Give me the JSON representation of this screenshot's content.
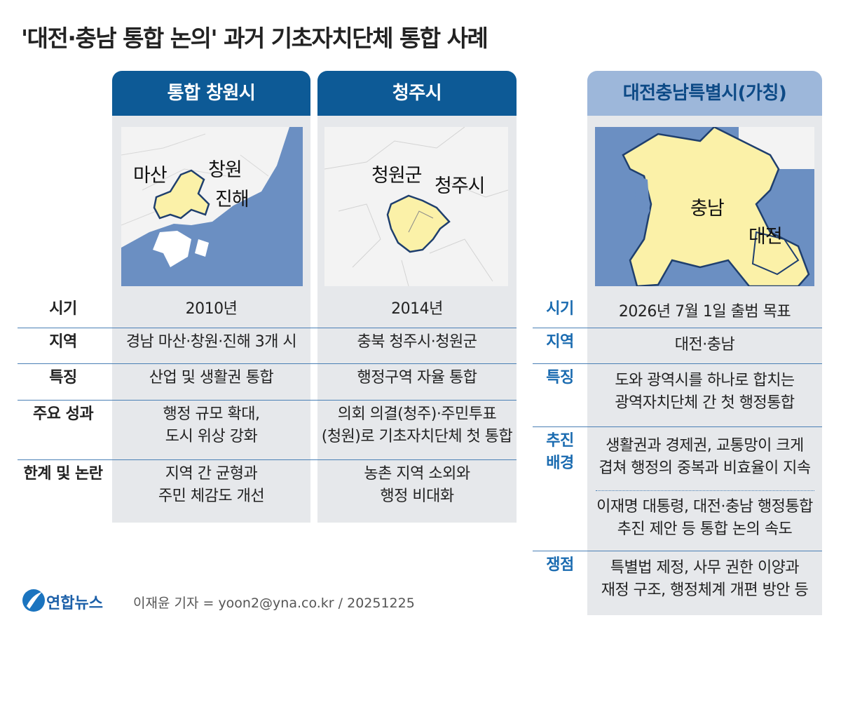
{
  "title": "'대전·충남 통합 논의' 과거 기초자치단체 통합 사례",
  "table": {
    "row_labels": [
      "시기",
      "지역",
      "특징",
      "주요 성과",
      "한계 및 논란"
    ],
    "columns": [
      {
        "header": "통합 창원시",
        "map_labels": [
          "마산",
          "창원",
          "진해"
        ],
        "cells": [
          [
            "2010년"
          ],
          [
            "경남 마산·창원·진해 3개 시"
          ],
          [
            "산업 및 생활권 통합"
          ],
          [
            "행정 규모 확대,",
            "도시 위상 강화"
          ],
          [
            "지역 간 균형과",
            "주민 체감도 개선"
          ]
        ]
      },
      {
        "header": "청주시",
        "map_labels": [
          "청원군",
          "청주시"
        ],
        "cells": [
          [
            "2014년"
          ],
          [
            "충북 청주시·청원군"
          ],
          [
            "행정구역 자율 통합"
          ],
          [
            "의회 의결(청주)·주민투표",
            "(청원)로 기초자치단체 첫 통합"
          ],
          [
            "농촌 지역 소외와",
            "행정 비대화"
          ]
        ]
      }
    ]
  },
  "feature": {
    "header": "대전충남특별시(가칭)",
    "map_labels": [
      "충남",
      "대전"
    ],
    "row_labels": [
      [
        "시기"
      ],
      [
        "지역"
      ],
      [
        "특징"
      ],
      [
        "추진",
        "배경"
      ],
      [
        "쟁점"
      ]
    ],
    "cells": [
      [
        "2026년 7월 1일 출범 목표"
      ],
      [
        "대전·충남"
      ],
      [
        "도와 광역시를 하나로 합치는",
        "광역자치단체 간 첫 행정통합"
      ],
      [
        [
          "생활권과 경제권, 교통망이 크게",
          "겹쳐 행정의 중복과 비효율이 지속"
        ],
        [
          "이재명 대통령, 대전·충남 행정통합",
          "추진 제안 등 통합 논의 속도"
        ]
      ],
      [
        "특별법 제정, 사무 권한 이양과",
        "재정 구조, 행정체계 개편 방안 등"
      ]
    ]
  },
  "footer": {
    "logo": "연합뉴스",
    "credit": "이재윤 기자 = yoon2@yna.co.kr / 20251225"
  }
}
